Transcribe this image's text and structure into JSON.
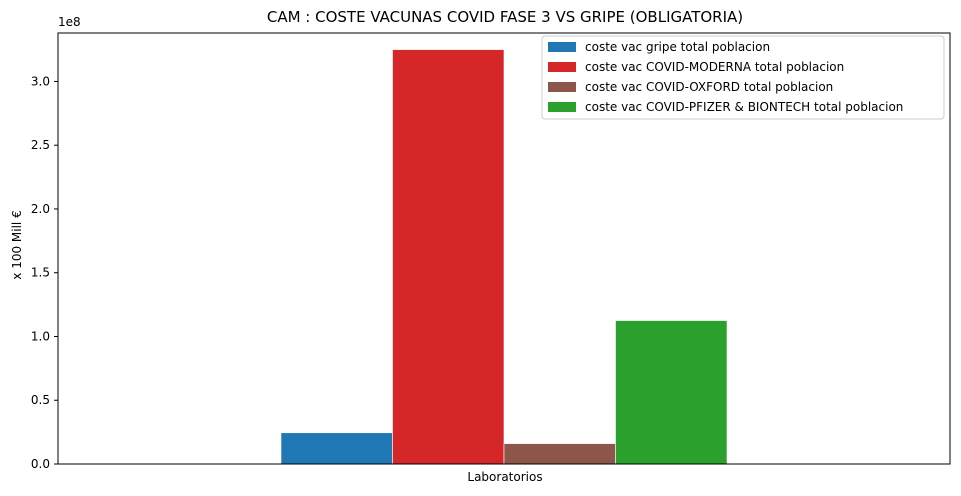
{
  "chart_data": {
    "type": "bar",
    "title": "CAM : COSTE VACUNAS COVID FASE 3 VS GRIPE  (OBLIGATORIA)",
    "xlabel": "Laboratorios",
    "ylabel": "x 100 Mill €",
    "offset_label": "1e8",
    "categories": [
      ""
    ],
    "ylim": [
      0,
      3.38
    ],
    "yticks": [
      0.0,
      0.5,
      1.0,
      1.5,
      2.0,
      2.5,
      3.0
    ],
    "ytick_labels": [
      "0.0",
      "0.5",
      "1.0",
      "1.5",
      "2.0",
      "2.5",
      "3.0"
    ],
    "grid": false,
    "legend_position": "top-right",
    "series": [
      {
        "name": "coste vac gripe total poblacion",
        "color": "#1f77b4",
        "values": [
          0.245
        ]
      },
      {
        "name": "coste vac COVID-MODERNA total poblacion",
        "color": "#d62728",
        "values": [
          3.25
        ]
      },
      {
        "name": "coste vac COVID-OXFORD total poblacion",
        "color": "#8c564b",
        "values": [
          0.16
        ]
      },
      {
        "name": "coste vac COVID-PFIZER & BIONTECH total poblacion",
        "color": "#2ca02c",
        "values": [
          1.125
        ]
      }
    ]
  }
}
